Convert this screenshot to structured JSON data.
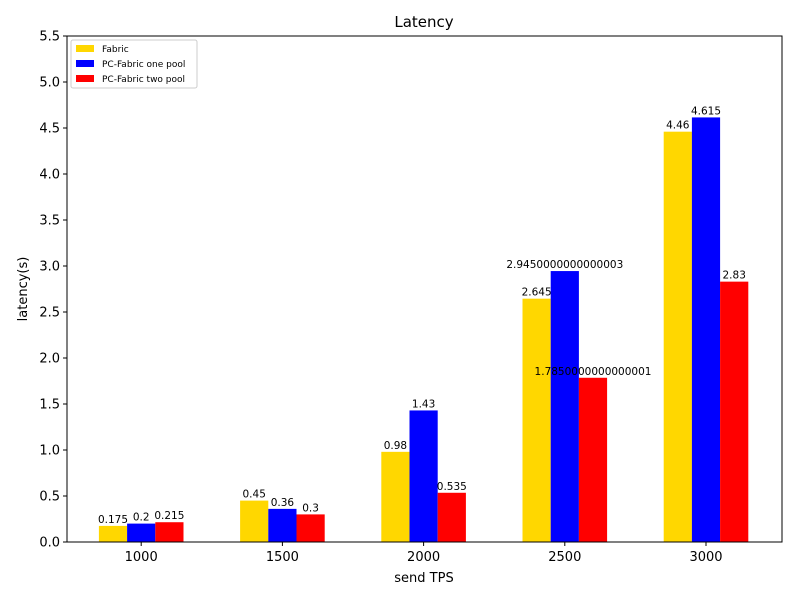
{
  "chart_data": {
    "type": "bar",
    "title": "Latency",
    "xlabel": "send TPS",
    "ylabel": "latency(s)",
    "categories": [
      "1000",
      "1500",
      "2000",
      "2500",
      "3000"
    ],
    "ylim": [
      0,
      5.5
    ],
    "yticks": [
      "0.0",
      "0.5",
      "1.0",
      "1.5",
      "2.0",
      "2.5",
      "3.0",
      "3.5",
      "4.0",
      "4.5",
      "5.0",
      "5.5"
    ],
    "grid": false,
    "legend_position": "top-left",
    "series": [
      {
        "name": "Fabric",
        "color": "#FFD700",
        "values": [
          0.175,
          0.45,
          0.98,
          2.645,
          4.46
        ],
        "labels": [
          "0.175",
          "0.45",
          "0.98",
          "2.645",
          "4.46"
        ]
      },
      {
        "name": "PC-Fabric one pool",
        "color": "#0000FF",
        "values": [
          0.2,
          0.36,
          1.43,
          2.9450000000000003,
          4.615
        ],
        "labels": [
          "0.2",
          "0.36",
          "1.43",
          "2.9450000000000003",
          "4.615"
        ]
      },
      {
        "name": "PC-Fabric two pool",
        "color": "#FF0000",
        "values": [
          0.215,
          0.3,
          0.535,
          1.7850000000000001,
          2.83
        ],
        "labels": [
          "0.215",
          "0.3",
          "0.535",
          "1.7850000000000001",
          "2.83"
        ]
      }
    ]
  }
}
